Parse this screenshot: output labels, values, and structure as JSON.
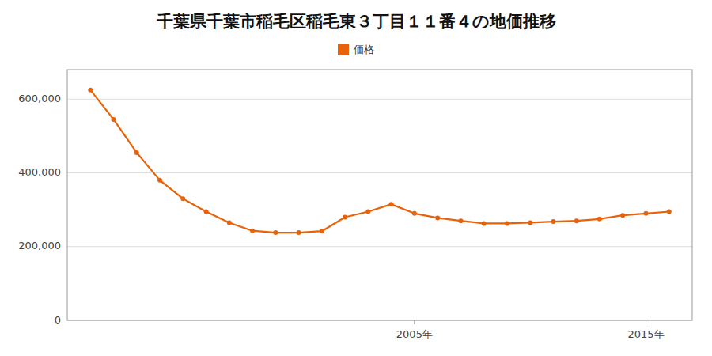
{
  "chart_data": {
    "type": "line",
    "title": "千葉県千葉市稲毛区稲毛東３丁目１１番４の地価推移",
    "x": [
      1991,
      1992,
      1993,
      1994,
      1995,
      1996,
      1997,
      1998,
      1999,
      2000,
      2001,
      2002,
      2003,
      2004,
      2005,
      2006,
      2007,
      2008,
      2009,
      2010,
      2011,
      2012,
      2013,
      2014,
      2015,
      2016
    ],
    "series": [
      {
        "name": "価格",
        "color": "#e8620a",
        "marker": "circle",
        "values": [
          625000,
          545000,
          455000,
          380000,
          330000,
          295000,
          265000,
          243000,
          238000,
          238000,
          242000,
          280000,
          295000,
          315000,
          290000,
          278000,
          270000,
          263000,
          263000,
          265000,
          268000,
          270000,
          275000,
          285000,
          290000,
          295000
        ]
      }
    ],
    "xlim": [
      1990,
      2017
    ],
    "xticks": [
      {
        "value": 2005,
        "label": "2005年"
      },
      {
        "value": 2015,
        "label": "2015年"
      }
    ],
    "ylim": [
      0,
      680000
    ],
    "yticks": [
      0,
      {
        "value": 200000,
        "label": "200,000"
      },
      {
        "value": 400000,
        "label": "400,000"
      },
      {
        "value": 600000,
        "label": "600,000"
      }
    ],
    "grid": true,
    "legend": "top"
  }
}
